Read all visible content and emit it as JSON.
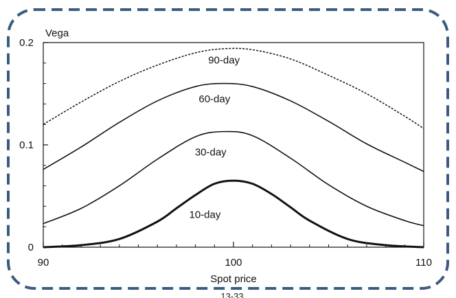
{
  "chart_data": {
    "type": "line",
    "title": "",
    "xlabel": "Spot price",
    "ylabel": "Vega",
    "xlim": [
      90,
      110
    ],
    "ylim": [
      0,
      0.2
    ],
    "x_ticks": [
      "90",
      "100",
      "110"
    ],
    "y_ticks": [
      "0",
      "0.1",
      "0.2"
    ],
    "grid": false,
    "legend": "none",
    "series": [
      {
        "name": "90-day",
        "style": "dashed",
        "x": [
          90,
          92,
          94,
          96,
          98,
          99.5,
          101,
          103,
          105,
          107,
          109,
          110
        ],
        "y": [
          0.12,
          0.142,
          0.162,
          0.178,
          0.19,
          0.194,
          0.193,
          0.184,
          0.168,
          0.15,
          0.128,
          0.116
        ]
      },
      {
        "name": "60-day",
        "style": "solid",
        "x": [
          90,
          92,
          94,
          96,
          98,
          99.5,
          101,
          103,
          105,
          107,
          109,
          110
        ],
        "y": [
          0.076,
          0.098,
          0.122,
          0.143,
          0.157,
          0.16,
          0.157,
          0.143,
          0.123,
          0.101,
          0.083,
          0.074
        ]
      },
      {
        "name": "30-day",
        "style": "solid",
        "x": [
          90,
          92,
          94,
          96,
          98,
          99.5,
          101,
          103,
          105,
          107,
          109,
          110
        ],
        "y": [
          0.023,
          0.038,
          0.06,
          0.086,
          0.108,
          0.113,
          0.109,
          0.087,
          0.061,
          0.04,
          0.026,
          0.021
        ]
      },
      {
        "name": "10-day",
        "style": "thick",
        "x": [
          90,
          92,
          94,
          96,
          97,
          98,
          99,
          100,
          101,
          102,
          103,
          104,
          106,
          108,
          110
        ],
        "y": [
          0.0,
          0.002,
          0.008,
          0.025,
          0.038,
          0.051,
          0.062,
          0.065,
          0.062,
          0.052,
          0.039,
          0.026,
          0.008,
          0.002,
          0.0
        ]
      }
    ],
    "annotations": [
      {
        "text": "90-day",
        "x": 99.5,
        "y": 0.183
      },
      {
        "text": "60-day",
        "x": 99.0,
        "y": 0.145
      },
      {
        "text": "30-day",
        "x": 98.8,
        "y": 0.093
      },
      {
        "text": "10-day",
        "x": 98.5,
        "y": 0.032
      }
    ]
  },
  "colors": {
    "frame": "#3d5a80",
    "axes": "#111111",
    "line": "#111111"
  },
  "footer_text": "13-33"
}
